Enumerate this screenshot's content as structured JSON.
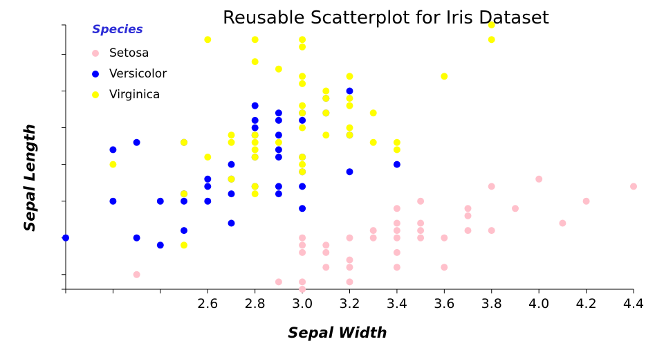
{
  "chart_data": {
    "type": "scatter",
    "title": "Reusable Scatterplot for Iris Dataset",
    "xlabel": "Sepal Width",
    "ylabel": "Sepal Length",
    "xlim": [
      2.0,
      4.4
    ],
    "ylim": [
      4.3,
      7.9
    ],
    "x_ticks": [
      2.0,
      2.2,
      2.4,
      2.6,
      2.8,
      3.0,
      3.2,
      3.4,
      3.6,
      3.8,
      4.0,
      4.2,
      4.4
    ],
    "x_tick_labels": [
      "",
      "",
      "",
      "2.6",
      "2.8",
      "3.0",
      "3.2",
      "3.4",
      "3.6",
      "3.8",
      "4.0",
      "4.2",
      "4.4"
    ],
    "y_ticks": [
      4.3,
      4.5,
      5.0,
      5.5,
      6.0,
      6.5,
      7.0,
      7.5,
      7.9
    ],
    "y_tick_labels": [
      "",
      "",
      "",
      "",
      "",
      "",
      "",
      "",
      ""
    ],
    "grid": false,
    "legend": {
      "title": "Species",
      "placement": "top-left",
      "entries": [
        "Setosa",
        "Versicolor",
        "Virginica"
      ]
    },
    "series": [
      {
        "name": "Setosa",
        "color": "#ffc0cb",
        "points": [
          [
            2.3,
            4.5
          ],
          [
            2.9,
            4.4
          ],
          [
            3.0,
            4.4
          ],
          [
            3.0,
            4.3
          ],
          [
            3.2,
            4.4
          ],
          [
            3.1,
            4.6
          ],
          [
            3.2,
            4.6
          ],
          [
            3.4,
            4.6
          ],
          [
            3.6,
            4.6
          ],
          [
            3.2,
            4.7
          ],
          [
            3.0,
            4.8
          ],
          [
            3.1,
            4.8
          ],
          [
            3.4,
            4.8
          ],
          [
            3.0,
            4.9
          ],
          [
            3.1,
            4.9
          ],
          [
            3.0,
            5.0
          ],
          [
            3.2,
            5.0
          ],
          [
            3.3,
            5.0
          ],
          [
            3.4,
            5.0
          ],
          [
            3.5,
            5.0
          ],
          [
            3.6,
            5.0
          ],
          [
            3.3,
            5.1
          ],
          [
            3.4,
            5.1
          ],
          [
            3.5,
            5.1
          ],
          [
            3.7,
            5.1
          ],
          [
            3.8,
            5.1
          ],
          [
            3.4,
            5.2
          ],
          [
            3.5,
            5.2
          ],
          [
            4.1,
            5.2
          ],
          [
            3.7,
            5.3
          ],
          [
            3.4,
            5.4
          ],
          [
            3.7,
            5.4
          ],
          [
            3.9,
            5.4
          ],
          [
            3.5,
            5.5
          ],
          [
            4.2,
            5.5
          ],
          [
            3.8,
            5.7
          ],
          [
            4.4,
            5.7
          ],
          [
            4.0,
            5.8
          ]
        ]
      },
      {
        "name": "Versicolor",
        "color": "#0000ff",
        "points": [
          [
            2.0,
            5.0
          ],
          [
            2.3,
            5.0
          ],
          [
            2.4,
            4.9
          ],
          [
            2.5,
            5.1
          ],
          [
            2.7,
            5.2
          ],
          [
            2.2,
            5.5
          ],
          [
            2.4,
            5.5
          ],
          [
            2.5,
            5.5
          ],
          [
            2.6,
            5.5
          ],
          [
            2.5,
            5.6
          ],
          [
            2.7,
            5.6
          ],
          [
            2.9,
            5.6
          ],
          [
            2.8,
            5.7
          ],
          [
            2.9,
            5.7
          ],
          [
            3.0,
            5.7
          ],
          [
            2.5,
            5.6
          ],
          [
            3.0,
            5.4
          ],
          [
            2.6,
            5.8
          ],
          [
            2.7,
            5.8
          ],
          [
            2.6,
            5.7
          ],
          [
            2.7,
            6.0
          ],
          [
            3.4,
            6.0
          ],
          [
            3.2,
            5.9
          ],
          [
            3.0,
            5.9
          ],
          [
            2.8,
            6.1
          ],
          [
            2.9,
            6.1
          ],
          [
            3.0,
            6.1
          ],
          [
            2.9,
            6.2
          ],
          [
            2.2,
            6.2
          ],
          [
            2.3,
            6.3
          ],
          [
            2.5,
            6.3
          ],
          [
            2.8,
            6.4
          ],
          [
            2.9,
            6.4
          ],
          [
            3.2,
            6.4
          ],
          [
            2.8,
            6.5
          ],
          [
            2.8,
            6.6
          ],
          [
            2.9,
            6.6
          ],
          [
            3.0,
            6.7
          ],
          [
            3.1,
            6.7
          ],
          [
            3.0,
            6.6
          ],
          [
            3.1,
            6.9
          ],
          [
            2.8,
            6.8
          ],
          [
            3.2,
            7.0
          ],
          [
            2.9,
            6.7
          ]
        ]
      },
      {
        "name": "Virginica",
        "color": "#ffff00",
        "points": [
          [
            2.5,
            4.9
          ],
          [
            2.5,
            5.6
          ],
          [
            2.8,
            5.6
          ],
          [
            2.8,
            5.7
          ],
          [
            2.7,
            5.8
          ],
          [
            2.6,
            6.1
          ],
          [
            2.8,
            6.1
          ],
          [
            3.0,
            5.9
          ],
          [
            3.0,
            6.0
          ],
          [
            2.2,
            6.0
          ],
          [
            2.8,
            6.2
          ],
          [
            3.4,
            6.2
          ],
          [
            2.5,
            6.3
          ],
          [
            2.7,
            6.3
          ],
          [
            2.8,
            6.3
          ],
          [
            2.9,
            6.3
          ],
          [
            3.3,
            6.3
          ],
          [
            3.4,
            6.3
          ],
          [
            2.7,
            6.4
          ],
          [
            2.8,
            6.4
          ],
          [
            3.1,
            6.4
          ],
          [
            3.2,
            6.4
          ],
          [
            3.0,
            6.5
          ],
          [
            3.2,
            6.5
          ],
          [
            3.0,
            6.7
          ],
          [
            3.3,
            6.7
          ],
          [
            3.1,
            6.7
          ],
          [
            3.2,
            6.8
          ],
          [
            3.0,
            6.8
          ],
          [
            3.2,
            6.9
          ],
          [
            3.0,
            7.1
          ],
          [
            3.2,
            7.2
          ],
          [
            3.0,
            7.2
          ],
          [
            2.9,
            7.3
          ],
          [
            3.6,
            7.2
          ],
          [
            3.1,
            7.0
          ],
          [
            2.8,
            7.4
          ],
          [
            3.0,
            7.6
          ],
          [
            3.0,
            7.7
          ],
          [
            2.6,
            7.7
          ],
          [
            2.8,
            7.7
          ],
          [
            3.8,
            7.7
          ],
          [
            3.8,
            7.9
          ],
          [
            3.0,
            6.1
          ],
          [
            3.1,
            6.9
          ]
        ]
      }
    ]
  }
}
